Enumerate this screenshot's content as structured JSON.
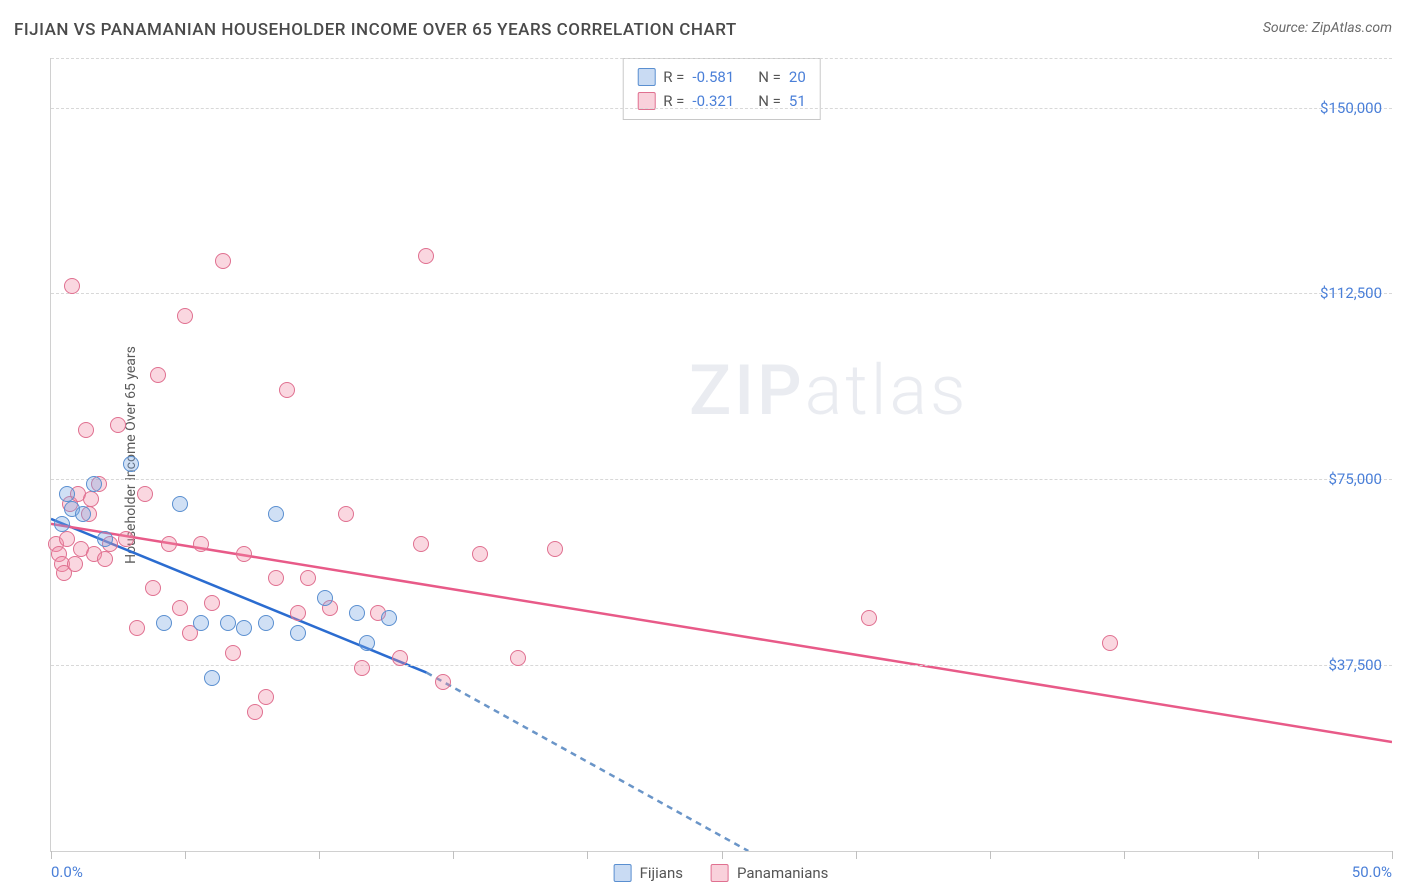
{
  "title": "FIJIAN VS PANAMANIAN HOUSEHOLDER INCOME OVER 65 YEARS CORRELATION CHART",
  "source": "Source: ZipAtlas.com",
  "ylabel": "Householder Income Over 65 years",
  "watermark_zip": "ZIP",
  "watermark_atlas": "atlas",
  "stats": {
    "fijian": {
      "R_label": "R =",
      "R": "-0.581",
      "N_label": "N =",
      "N": "20"
    },
    "panamanian": {
      "R_label": "R =",
      "R": "-0.321",
      "N_label": "N =",
      "N": "51"
    }
  },
  "legend": {
    "fijians": "Fijians",
    "panamanians": "Panamanians"
  },
  "colors": {
    "fijian_fill": "rgba(120,165,225,0.35)",
    "fijian_stroke": "#5a8fd0",
    "fijian_line": "#2b6cd0",
    "panamanian_fill": "rgba(240,140,165,0.35)",
    "panamanian_stroke": "#e07090",
    "panamanian_line": "#e85a88",
    "tick_label": "#4a7fd8",
    "grid": "#d8d8d8",
    "axis": "#d0d0d0",
    "text": "#4a4a4a",
    "background": "#ffffff"
  },
  "axes": {
    "xlim": [
      0,
      50
    ],
    "ylim": [
      0,
      160000
    ],
    "xtick_positions": [
      0,
      5,
      10,
      15,
      20,
      25,
      30,
      35,
      40,
      45,
      50
    ],
    "xtick_labels": {
      "0": "0.0%",
      "50": "50.0%"
    },
    "ytick_positions": [
      37500,
      75000,
      112500,
      150000
    ],
    "ytick_labels": [
      "$37,500",
      "$75,000",
      "$112,500",
      "$150,000"
    ],
    "top_gridline": 160000
  },
  "series": {
    "fijian": {
      "type": "scatter",
      "points": [
        [
          0.4,
          66000
        ],
        [
          0.6,
          72000
        ],
        [
          0.8,
          69000
        ],
        [
          1.2,
          68000
        ],
        [
          1.6,
          74000
        ],
        [
          2.0,
          63000
        ],
        [
          3.0,
          78000
        ],
        [
          4.2,
          46000
        ],
        [
          4.8,
          70000
        ],
        [
          5.6,
          46000
        ],
        [
          6.0,
          35000
        ],
        [
          6.6,
          46000
        ],
        [
          7.2,
          45000
        ],
        [
          8.0,
          46000
        ],
        [
          8.4,
          68000
        ],
        [
          9.2,
          44000
        ],
        [
          10.2,
          51000
        ],
        [
          11.4,
          48000
        ],
        [
          11.8,
          42000
        ],
        [
          12.6,
          47000
        ]
      ],
      "trend": {
        "x1": 0,
        "y1": 67000,
        "x2": 14,
        "y2": 36000,
        "dashed_to_x": 26,
        "dashed_to_y": 0
      }
    },
    "panamanian": {
      "type": "scatter",
      "points": [
        [
          0.2,
          62000
        ],
        [
          0.3,
          60000
        ],
        [
          0.4,
          58000
        ],
        [
          0.5,
          56000
        ],
        [
          0.6,
          63000
        ],
        [
          0.7,
          70000
        ],
        [
          0.8,
          114000
        ],
        [
          0.9,
          58000
        ],
        [
          1.0,
          72000
        ],
        [
          1.1,
          61000
        ],
        [
          1.3,
          85000
        ],
        [
          1.4,
          68000
        ],
        [
          1.5,
          71000
        ],
        [
          1.6,
          60000
        ],
        [
          1.8,
          74000
        ],
        [
          2.0,
          59000
        ],
        [
          2.2,
          62000
        ],
        [
          2.5,
          86000
        ],
        [
          2.8,
          63000
        ],
        [
          3.2,
          45000
        ],
        [
          3.5,
          72000
        ],
        [
          3.8,
          53000
        ],
        [
          4.0,
          96000
        ],
        [
          4.4,
          62000
        ],
        [
          4.8,
          49000
        ],
        [
          5.0,
          108000
        ],
        [
          5.2,
          44000
        ],
        [
          5.6,
          62000
        ],
        [
          6.0,
          50000
        ],
        [
          6.4,
          119000
        ],
        [
          6.8,
          40000
        ],
        [
          7.2,
          60000
        ],
        [
          7.6,
          28000
        ],
        [
          8.0,
          31000
        ],
        [
          8.4,
          55000
        ],
        [
          8.8,
          93000
        ],
        [
          9.2,
          48000
        ],
        [
          9.6,
          55000
        ],
        [
          10.4,
          49000
        ],
        [
          11.0,
          68000
        ],
        [
          11.6,
          37000
        ],
        [
          12.2,
          48000
        ],
        [
          13.0,
          39000
        ],
        [
          13.8,
          62000
        ],
        [
          14.6,
          34000
        ],
        [
          16.0,
          60000
        ],
        [
          17.4,
          39000
        ],
        [
          18.8,
          61000
        ],
        [
          30.5,
          47000
        ],
        [
          39.5,
          42000
        ],
        [
          14.0,
          120000
        ]
      ],
      "trend": {
        "x1": 0,
        "y1": 66000,
        "x2": 50,
        "y2": 22000
      }
    }
  }
}
